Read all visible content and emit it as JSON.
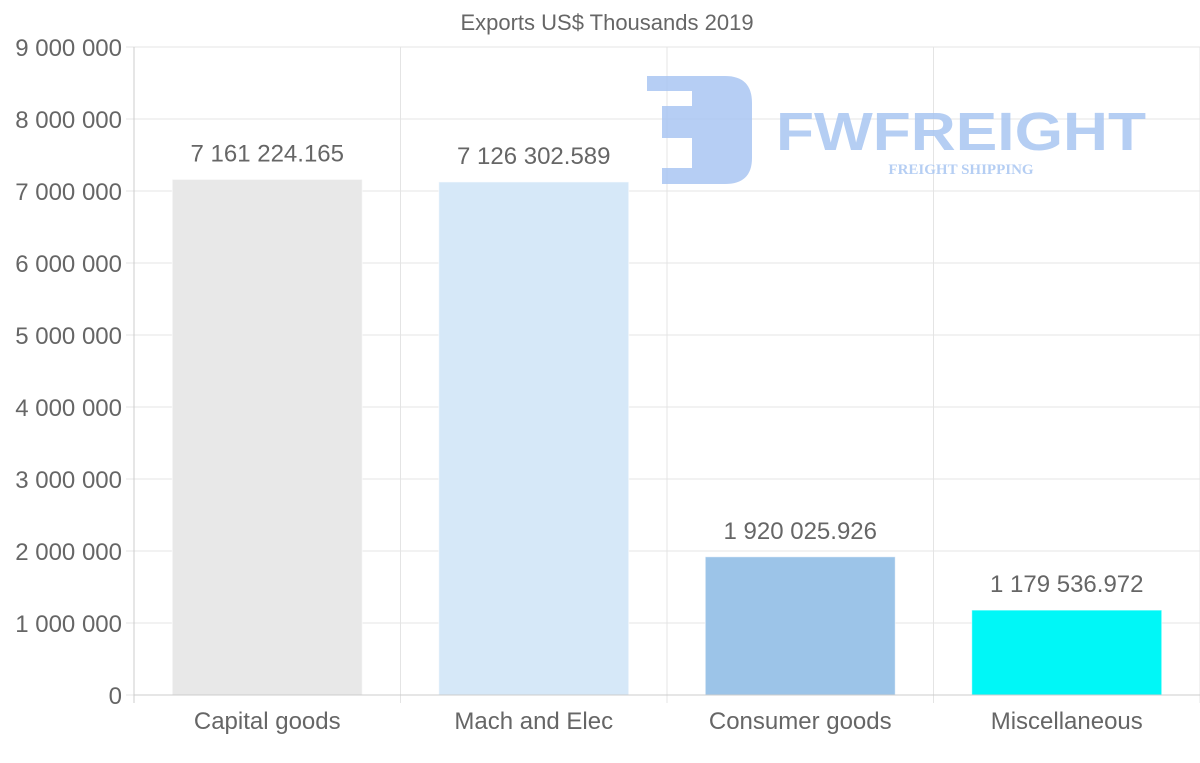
{
  "chart_data": {
    "type": "bar",
    "title": "Exports US$ Thousands 2019",
    "categories": [
      "Capital goods",
      "Mach and Elec",
      "Consumer goods",
      "Miscellaneous"
    ],
    "values": [
      7161224.165,
      7126302.589,
      1920025.926,
      1179536.972
    ],
    "value_labels": [
      "7 161 224.165",
      "7 126 302.589",
      "1 920 025.926",
      "1 179 536.972"
    ],
    "colors": [
      "#e8e8e8",
      "#d6e8f8",
      "#9cc4e8",
      "#00f7f7"
    ],
    "ylim": [
      0,
      9000000
    ],
    "yticks": [
      0,
      1000000,
      2000000,
      3000000,
      4000000,
      5000000,
      6000000,
      7000000,
      8000000,
      9000000
    ],
    "ytick_labels": [
      "0",
      "1 000 000",
      "2 000 000",
      "3 000 000",
      "4 000 000",
      "5 000 000",
      "6 000 000",
      "7 000 000",
      "8 000 000",
      "9 000 000"
    ],
    "xlabel": "",
    "ylabel": "",
    "grid": true,
    "legend": "none"
  },
  "watermark": {
    "brand": "FWFREIGHT",
    "tagline": "FREIGHT SHIPPING",
    "color": "#a9c6f2"
  }
}
